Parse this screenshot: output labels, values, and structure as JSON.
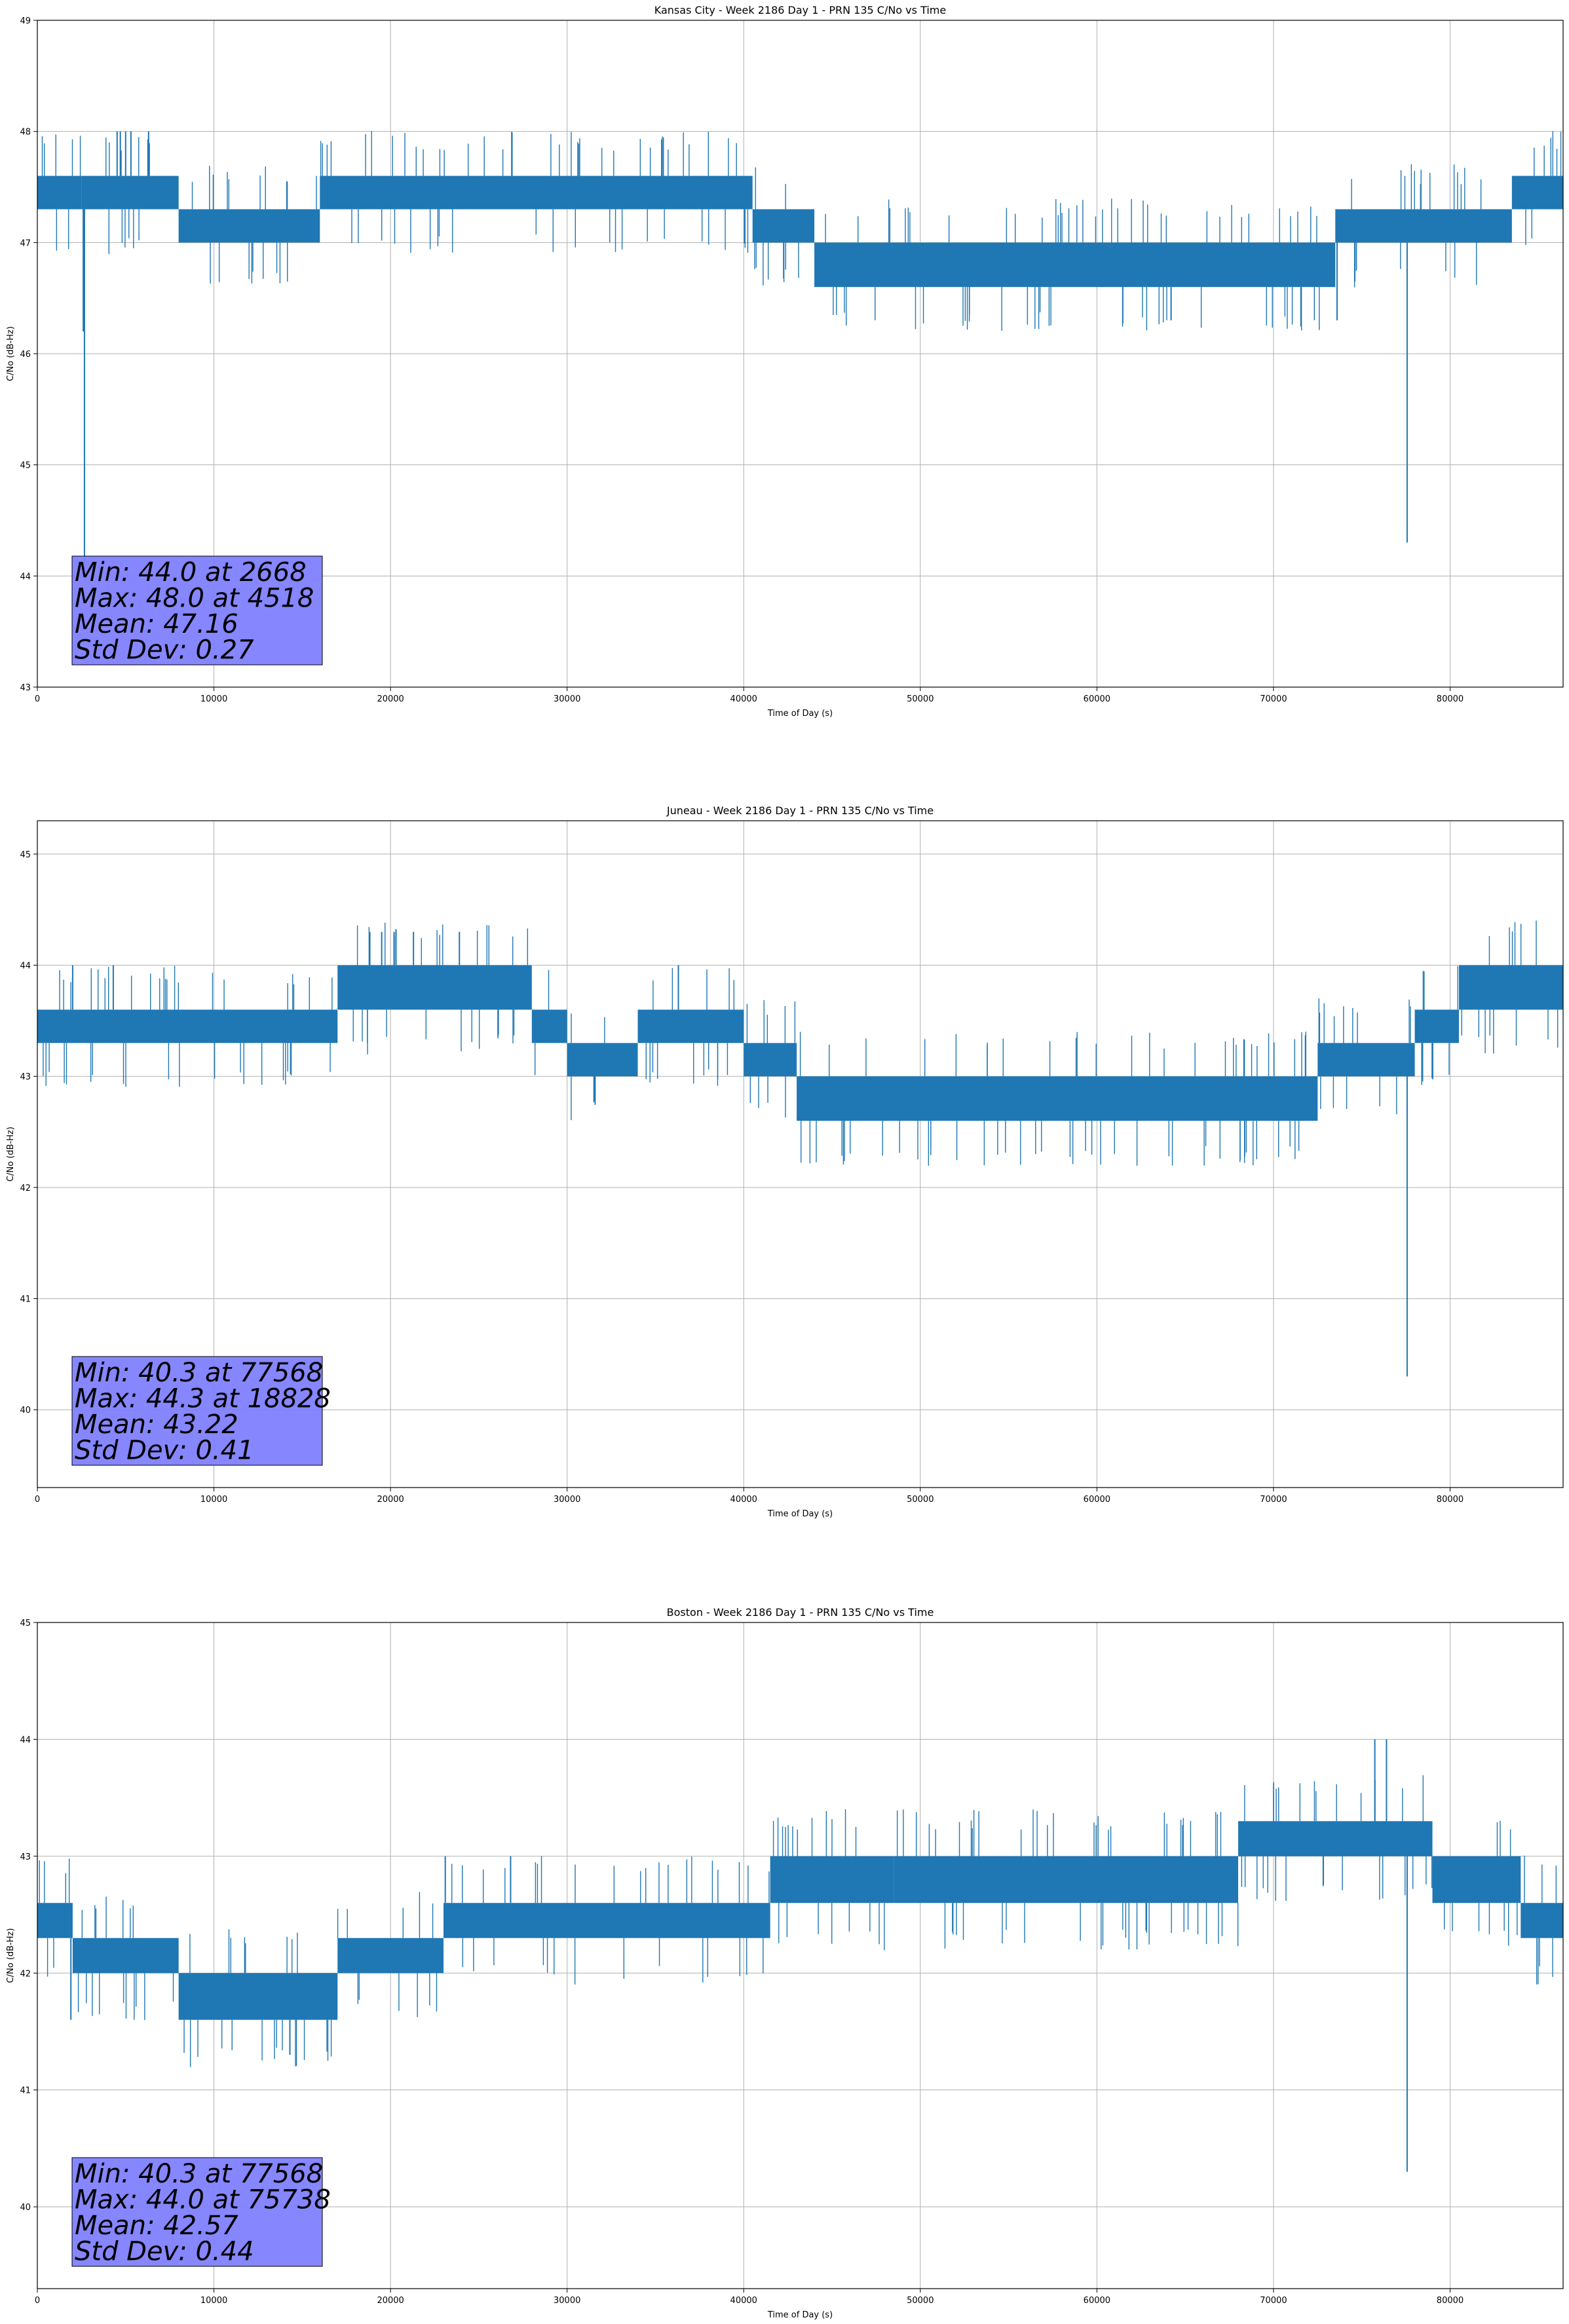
{
  "chart_data": [
    {
      "type": "line",
      "title": "Kansas City - Week 2186 Day 1 - PRN 135 C/No vs Time",
      "xlabel": "Time of Day (s)",
      "ylabel": "C/No (dB-Hz)",
      "xlim": [
        0,
        86400
      ],
      "ylim": [
        43,
        49
      ],
      "xticks": [
        0,
        10000,
        20000,
        30000,
        40000,
        50000,
        60000,
        70000,
        80000
      ],
      "yticks": [
        43,
        44,
        45,
        46,
        47,
        48,
        49
      ],
      "grid": true,
      "line_color": "#1f77b4",
      "stats_box_color": "#8080ff",
      "stats": [
        "Min: 44.0 at 2668",
        "Max: 48.0 at 4518",
        "Mean: 47.16",
        "Std Dev: 0.27"
      ],
      "segments": [
        {
          "x0": 0,
          "x1": 2500,
          "lo": 47.3,
          "hi": 47.6
        },
        {
          "x0": 2500,
          "x1": 8000,
          "lo": 47.3,
          "hi": 47.6
        },
        {
          "x0": 8000,
          "x1": 16000,
          "lo": 47.0,
          "hi": 47.3
        },
        {
          "x0": 16000,
          "x1": 40500,
          "lo": 47.3,
          "hi": 47.6
        },
        {
          "x0": 40500,
          "x1": 44000,
          "lo": 47.0,
          "hi": 47.3
        },
        {
          "x0": 44000,
          "x1": 73500,
          "lo": 46.6,
          "hi": 47.0
        },
        {
          "x0": 73500,
          "x1": 83500,
          "lo": 47.0,
          "hi": 47.3
        },
        {
          "x0": 83500,
          "x1": 86400,
          "lo": 47.3,
          "hi": 47.6
        }
      ],
      "spikes": [
        {
          "x": 2668,
          "y": 44.0
        },
        {
          "x": 2600,
          "y": 46.2
        },
        {
          "x": 4518,
          "y": 48.0
        },
        {
          "x": 5000,
          "y": 48.0
        },
        {
          "x": 5300,
          "y": 48.0
        },
        {
          "x": 6300,
          "y": 48.0
        },
        {
          "x": 4700,
          "y": 48.0
        },
        {
          "x": 64200,
          "y": 46.3
        },
        {
          "x": 73600,
          "y": 46.3
        },
        {
          "x": 77568,
          "y": 44.3
        }
      ]
    },
    {
      "type": "line",
      "title": "Juneau - Week 2186 Day 1 - PRN 135 C/No vs Time",
      "xlabel": "Time of Day (s)",
      "ylabel": "C/No (dB-Hz)",
      "xlim": [
        0,
        86400
      ],
      "ylim": [
        39.3,
        45.3
      ],
      "xticks": [
        0,
        10000,
        20000,
        30000,
        40000,
        50000,
        60000,
        70000,
        80000
      ],
      "yticks": [
        40,
        41,
        42,
        43,
        44,
        45
      ],
      "grid": true,
      "line_color": "#1f77b4",
      "stats_box_color": "#8080ff",
      "stats": [
        "Min: 40.3 at 77568",
        "Max: 44.3 at 18828",
        "Mean: 43.22",
        "Std Dev: 0.41"
      ],
      "segments": [
        {
          "x0": 0,
          "x1": 11000,
          "lo": 43.3,
          "hi": 43.6
        },
        {
          "x0": 11000,
          "x1": 17000,
          "lo": 43.3,
          "hi": 43.6
        },
        {
          "x0": 17000,
          "x1": 28000,
          "lo": 43.6,
          "hi": 44.0
        },
        {
          "x0": 28000,
          "x1": 30000,
          "lo": 43.3,
          "hi": 43.6
        },
        {
          "x0": 30000,
          "x1": 34000,
          "lo": 43.0,
          "hi": 43.3
        },
        {
          "x0": 34000,
          "x1": 40000,
          "lo": 43.3,
          "hi": 43.6
        },
        {
          "x0": 40000,
          "x1": 43000,
          "lo": 43.0,
          "hi": 43.3
        },
        {
          "x0": 43000,
          "x1": 72500,
          "lo": 42.6,
          "hi": 43.0
        },
        {
          "x0": 72500,
          "x1": 78000,
          "lo": 43.0,
          "hi": 43.3
        },
        {
          "x0": 78000,
          "x1": 80500,
          "lo": 43.3,
          "hi": 43.6
        },
        {
          "x0": 80500,
          "x1": 86400,
          "lo": 43.6,
          "hi": 44.0
        }
      ],
      "spikes": [
        {
          "x": 18828,
          "y": 44.3
        },
        {
          "x": 19500,
          "y": 44.3
        },
        {
          "x": 20200,
          "y": 44.3
        },
        {
          "x": 21300,
          "y": 44.3
        },
        {
          "x": 23900,
          "y": 44.3
        },
        {
          "x": 36300,
          "y": 44.0
        },
        {
          "x": 2000,
          "y": 44.0
        },
        {
          "x": 4300,
          "y": 44.0
        },
        {
          "x": 77568,
          "y": 40.3
        }
      ]
    },
    {
      "type": "line",
      "title": "Boston - Week 2186 Day 1 - PRN 135 C/No vs Time",
      "xlabel": "Time of Day (s)",
      "ylabel": "C/No (dB-Hz)",
      "xlim": [
        0,
        86400
      ],
      "ylim": [
        39.3,
        45
      ],
      "xticks": [
        0,
        10000,
        20000,
        30000,
        40000,
        50000,
        60000,
        70000,
        80000
      ],
      "yticks": [
        40,
        41,
        42,
        43,
        44,
        45
      ],
      "grid": true,
      "line_color": "#1f77b4",
      "stats_box_color": "#8080ff",
      "stats": [
        "Min: 40.3 at 77568",
        "Max: 44.0 at 75738",
        "Mean: 42.57",
        "Std Dev: 0.44"
      ],
      "segments": [
        {
          "x0": 0,
          "x1": 2000,
          "lo": 42.3,
          "hi": 42.6
        },
        {
          "x0": 2000,
          "x1": 8000,
          "lo": 42.0,
          "hi": 42.3
        },
        {
          "x0": 8000,
          "x1": 17000,
          "lo": 41.6,
          "hi": 42.0
        },
        {
          "x0": 17000,
          "x1": 23000,
          "lo": 42.0,
          "hi": 42.3
        },
        {
          "x0": 23000,
          "x1": 41500,
          "lo": 42.3,
          "hi": 42.6
        },
        {
          "x0": 41500,
          "x1": 48500,
          "lo": 42.6,
          "hi": 43.0
        },
        {
          "x0": 48500,
          "x1": 68000,
          "lo": 42.6,
          "hi": 43.0
        },
        {
          "x0": 68000,
          "x1": 79000,
          "lo": 43.0,
          "hi": 43.3
        },
        {
          "x0": 79000,
          "x1": 84000,
          "lo": 42.6,
          "hi": 43.0
        },
        {
          "x0": 84000,
          "x1": 86400,
          "lo": 42.3,
          "hi": 42.6
        }
      ],
      "spikes": [
        {
          "x": 14300,
          "y": 41.3
        },
        {
          "x": 1900,
          "y": 41.6
        },
        {
          "x": 75738,
          "y": 44.0
        },
        {
          "x": 76400,
          "y": 44.0
        },
        {
          "x": 23100,
          "y": 43.0
        },
        {
          "x": 26800,
          "y": 43.0
        },
        {
          "x": 77568,
          "y": 40.3
        }
      ]
    }
  ]
}
